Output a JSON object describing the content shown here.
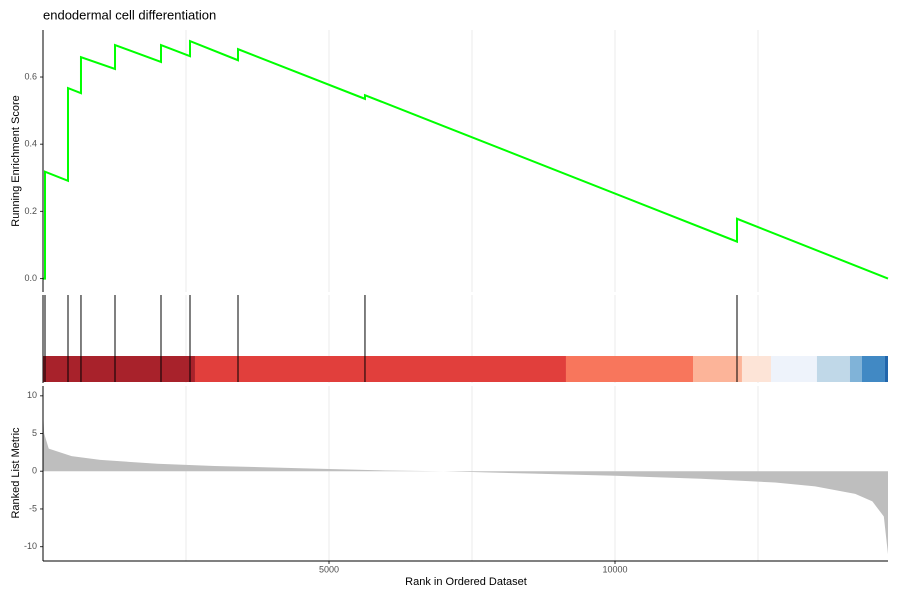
{
  "chart_data": [
    {
      "type": "line",
      "title": "endodermal cell differentiation",
      "ylabel": "Running Enrichment Score",
      "color": "#00ff00",
      "x": [
        0,
        35,
        35,
        437,
        437,
        664,
        664,
        1259,
        1259,
        2063,
        2063,
        2570,
        2570,
        3409,
        3409,
        5629,
        5629,
        12133,
        12133,
        14773
      ],
      "values": [
        0,
        0,
        0.318,
        0.291,
        0.567,
        0.552,
        0.659,
        0.624,
        0.695,
        0.645,
        0.695,
        0.662,
        0.707,
        0.65,
        0.683,
        0.535,
        0.546,
        0.11,
        0.178,
        0
      ],
      "xlim": [
        0,
        14773
      ],
      "ylim": [
        -0.04,
        0.74
      ],
      "yticks": [
        {
          "value": 0,
          "label": "0.0"
        },
        0.2,
        0.4,
        0.6
      ],
      "xgrid": [
        2500,
        5000,
        7500,
        10000,
        12500
      ]
    },
    {
      "type": "rug",
      "hits": [
        35,
        437,
        664,
        1259,
        2063,
        2570,
        3409,
        5629,
        12133
      ],
      "bins": [
        0,
        2657,
        9143,
        11364,
        12220,
        12727,
        13531,
        14108,
        14318,
        14720,
        14773
      ],
      "colors": [
        "#a8222b",
        "#e13f3c",
        "#f8765c",
        "#fcb499",
        "#fde4d7",
        "#eef3fb",
        "#c0d8e8",
        "#80b3d8",
        "#4189c4",
        "#2166ac"
      ],
      "xlim": [
        0,
        14773
      ],
      "xgrid": [
        2500,
        5000,
        7500,
        10000,
        12500
      ]
    },
    {
      "type": "area",
      "ylabel": "Ranked List Metric",
      "xlabel": "Rank in Ordered Dataset",
      "color": "#bebebe",
      "x": [
        0,
        20,
        100,
        500,
        1000,
        2000,
        3000,
        4500,
        6000,
        7000,
        8500,
        10000,
        11500,
        12800,
        13500,
        14200,
        14500,
        14700,
        14773
      ],
      "values": [
        8,
        5,
        3,
        2,
        1.5,
        1,
        0.7,
        0.4,
        0.1,
        0,
        -0.3,
        -0.6,
        -1,
        -1.5,
        -2,
        -3,
        -4,
        -6,
        -11
      ],
      "xlim": [
        0,
        14773
      ],
      "ylim": [
        -11.9,
        11.3
      ],
      "yticks": [
        -10,
        -5,
        0,
        5,
        10
      ],
      "xticks": [
        5000,
        10000
      ],
      "xgrid": [
        2500,
        5000,
        7500,
        10000,
        12500
      ]
    }
  ]
}
